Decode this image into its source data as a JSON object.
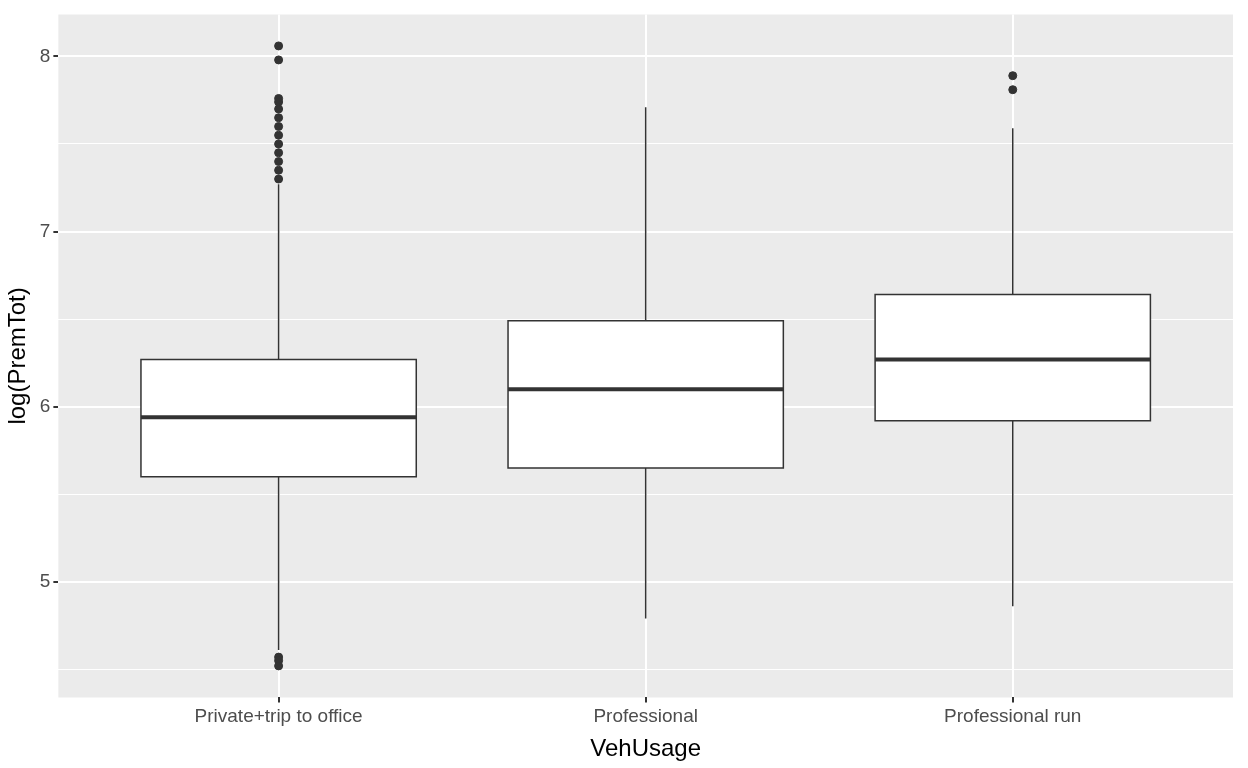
{
  "chart_data": {
    "type": "box",
    "xlabel": "VehUsage",
    "ylabel": "log(PremTot)",
    "categories": [
      "Private+trip to office",
      "Professional",
      "Professional run"
    ],
    "boxes": [
      {
        "low": 4.61,
        "q1": 5.6,
        "median": 5.94,
        "q3": 6.27,
        "high": 7.27,
        "outliers": [
          8.06,
          7.98,
          7.76,
          7.74,
          7.7,
          7.65,
          7.6,
          7.55,
          7.5,
          7.45,
          7.4,
          7.35,
          7.3,
          4.57,
          4.55,
          4.52
        ]
      },
      {
        "low": 4.79,
        "q1": 5.65,
        "median": 6.1,
        "q3": 6.49,
        "high": 7.71
      },
      {
        "low": 4.86,
        "q1": 5.92,
        "median": 6.27,
        "q3": 6.64,
        "high": 7.59,
        "outliers": [
          7.89,
          7.81
        ]
      }
    ],
    "color": "#ffffff",
    "ylim": [
      4.34,
      8.24
    ],
    "yticks": [
      {
        "value": 4.5,
        "label": null
      },
      5,
      {
        "value": 5.5,
        "label": null
      },
      6,
      {
        "value": 6.5,
        "label": null
      },
      7,
      {
        "value": 7.5,
        "label": null
      },
      8
    ],
    "grid": true,
    "legend": false
  }
}
